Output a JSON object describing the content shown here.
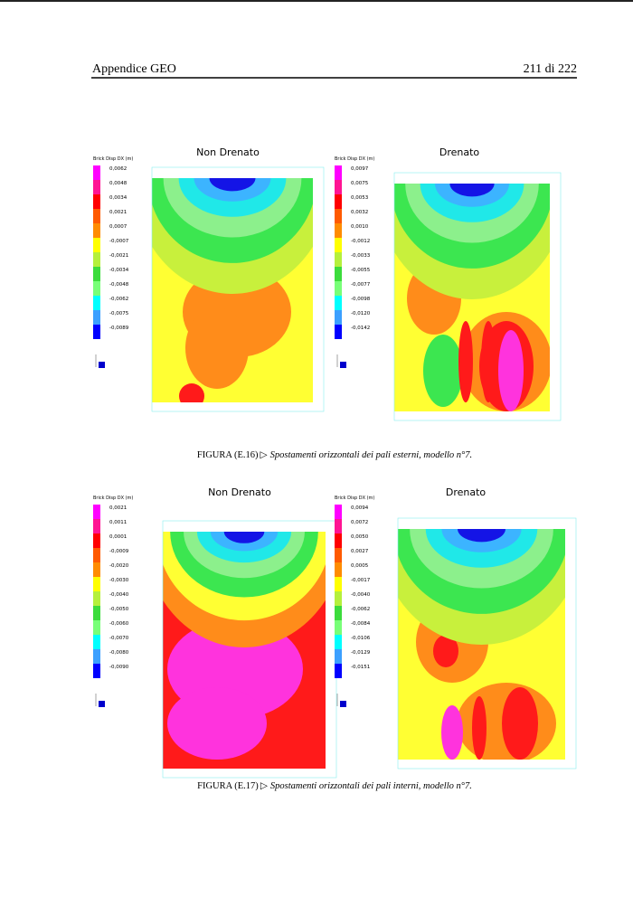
{
  "header": {
    "left": "Appendice GEO",
    "right": "211 di 222"
  },
  "figures": [
    {
      "caption_label": "FIGURA (E.16)",
      "caption_sep": "▷",
      "caption_text": "Spostamenti orizzontali dei pali esterni, modello n°7.",
      "panels": [
        {
          "title": "Non Drenato",
          "legend_title": "Brick Disp DX (m)",
          "legend": [
            "0,0062",
            "0,0048",
            "0,0034",
            "0,0021",
            "0,0007",
            "-0,0007",
            "-0,0021",
            "-0,0034",
            "-0,0048",
            "-0,0062",
            "-0,0075",
            "-0,0089"
          ]
        },
        {
          "title": "Drenato",
          "legend_title": "Brick Disp DX (m)",
          "legend": [
            "0,0097",
            "0,0075",
            "0,0053",
            "0,0032",
            "0,0010",
            "-0,0012",
            "-0,0033",
            "-0,0055",
            "-0,0077",
            "-0,0098",
            "-0,0120",
            "-0,0142"
          ]
        }
      ]
    },
    {
      "caption_label": "FIGURA (E.17)",
      "caption_sep": "▷",
      "caption_text": "Spostamenti orizzontali dei pali interni, modello n°7.",
      "panels": [
        {
          "title": "Non Drenato",
          "legend_title": "Brick Disp DX (m)",
          "legend": [
            "0,0021",
            "0,0011",
            "0,0001",
            "-0,0009",
            "-0,0020",
            "-0,0030",
            "-0,0040",
            "-0,0050",
            "-0,0060",
            "-0,0070",
            "-0,0080",
            "-0,0090"
          ]
        },
        {
          "title": "Drenato",
          "legend_title": "Brick Disp DX (m)",
          "legend": [
            "0,0094",
            "0,0072",
            "0,0050",
            "0,0027",
            "0,0005",
            "-0,0017",
            "-0,0040",
            "-0,0062",
            "-0,0084",
            "-0,0106",
            "-0,0129",
            "-0,0151"
          ]
        }
      ]
    }
  ]
}
